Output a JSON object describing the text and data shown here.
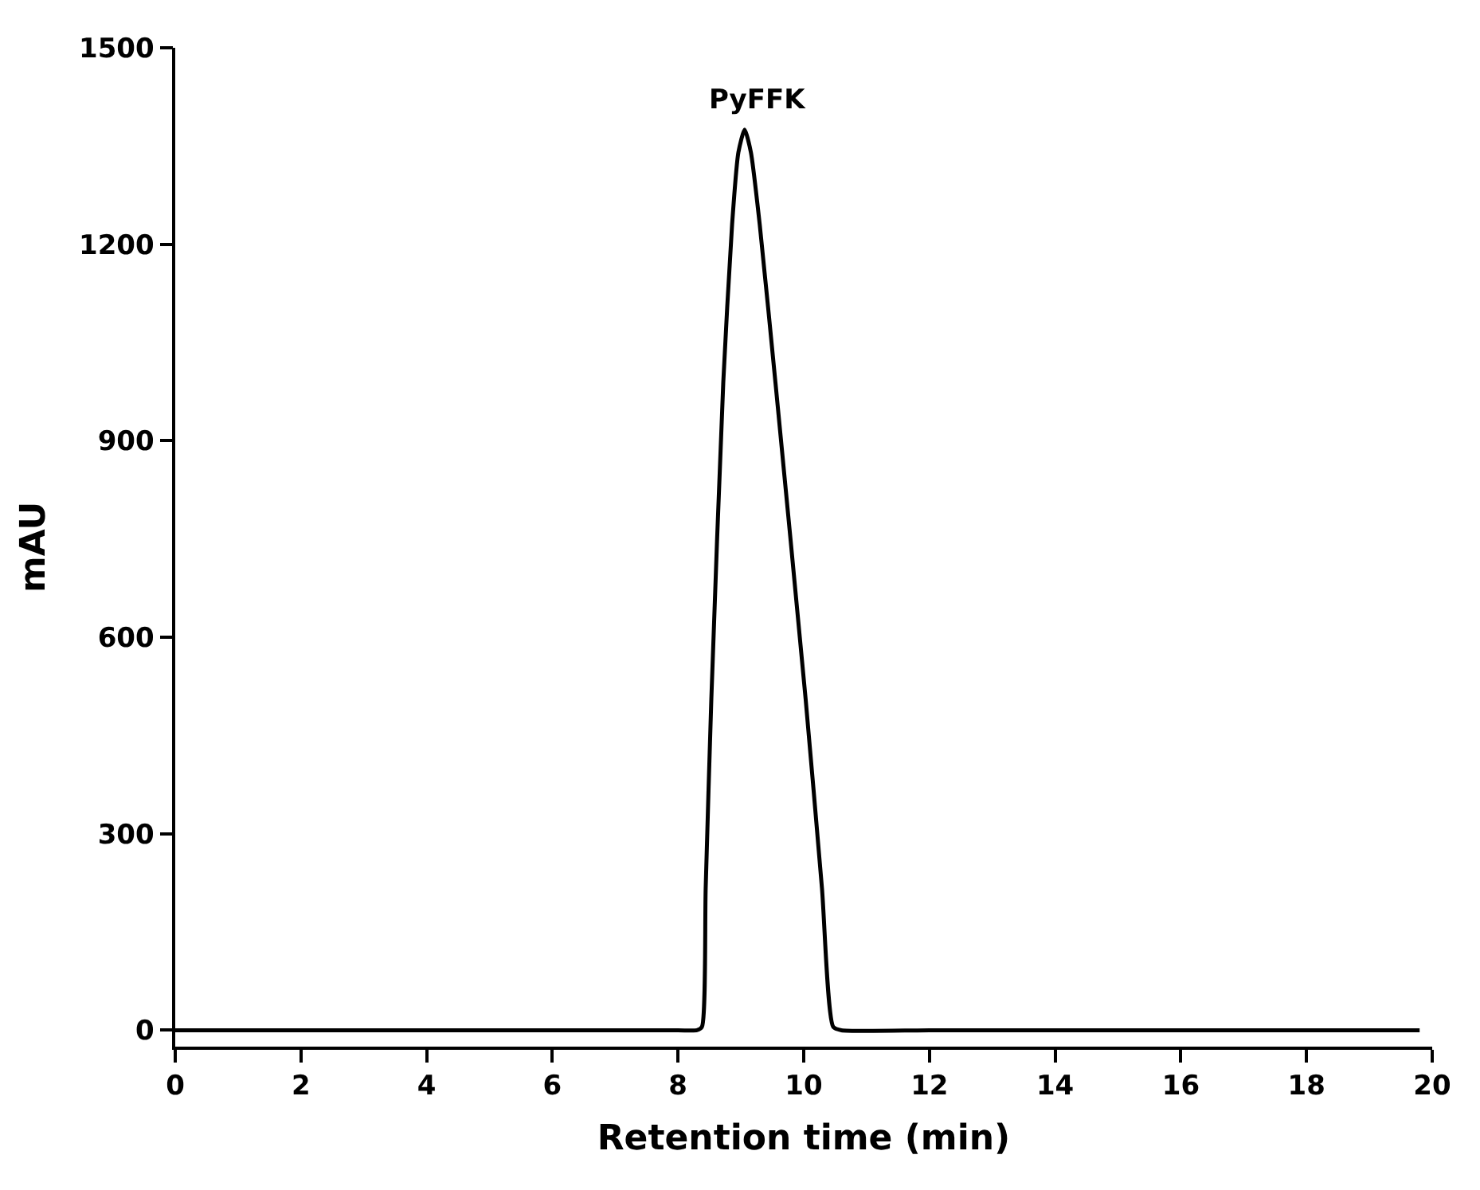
{
  "chart_data": {
    "type": "line",
    "xlabel": "Retention time (min)",
    "ylabel": "mAU",
    "x": [
      0,
      2,
      4,
      6,
      8,
      8.3,
      8.38,
      8.44,
      8.53,
      8.72,
      8.86,
      8.96,
      9.06,
      9.16,
      9.3,
      9.55,
      10.03,
      10.29,
      10.47,
      10.6,
      12,
      14,
      16,
      18,
      19.8
    ],
    "series": [
      {
        "color": "#000000",
        "values": [
          0,
          0,
          0,
          0,
          0,
          0,
          5,
          217,
          506,
          989,
          1230,
          1340,
          1375,
          1340,
          1230,
          989,
          506,
          217,
          5,
          0,
          0,
          0,
          0,
          0,
          0
        ]
      }
    ],
    "annotations": [
      {
        "text": "PyFFK",
        "x": 9.06,
        "y": 1375
      }
    ],
    "xlim": [
      0,
      20
    ],
    "xticks": [
      0,
      2,
      4,
      6,
      8,
      10,
      12,
      14,
      16,
      18,
      20
    ],
    "ylim": [
      -25,
      1500
    ],
    "yticks": [
      0,
      300,
      600,
      900,
      1200,
      1500
    ],
    "marker": "none",
    "line_style": "solid"
  }
}
